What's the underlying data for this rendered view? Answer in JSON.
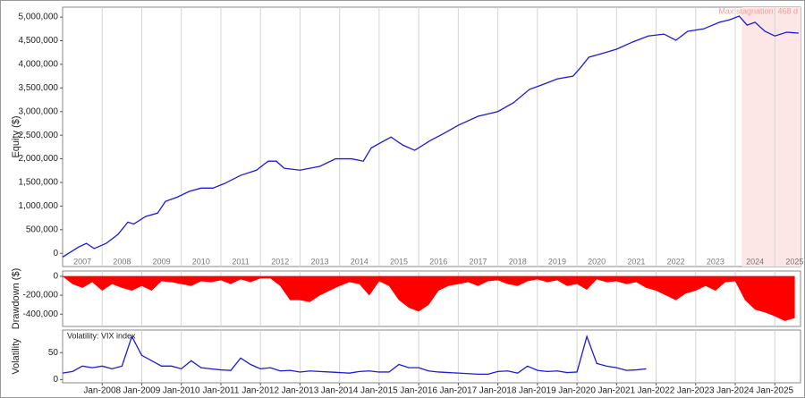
{
  "chart_data": [
    {
      "type": "line",
      "ylabel": "Equity ($)",
      "color": "#1a1adc",
      "xlim": [
        2007,
        2025.65
      ],
      "ylim": [
        -280000,
        5210000
      ],
      "xtick_position": "inside",
      "xticks": [
        {
          "value": 2007.5,
          "label": "2007"
        },
        {
          "value": 2008.5,
          "label": "2008"
        },
        {
          "value": 2009.5,
          "label": "2009"
        },
        {
          "value": 2010.5,
          "label": "2010"
        },
        {
          "value": 2011.5,
          "label": "2011"
        },
        {
          "value": 2012.5,
          "label": "2012"
        },
        {
          "value": 2013.5,
          "label": "2013"
        },
        {
          "value": 2014.5,
          "label": "2014"
        },
        {
          "value": 2015.5,
          "label": "2015"
        },
        {
          "value": 2016.5,
          "label": "2016"
        },
        {
          "value": 2017.5,
          "label": "2017"
        },
        {
          "value": 2018.5,
          "label": "2018"
        },
        {
          "value": 2019.5,
          "label": "2019"
        },
        {
          "value": 2020.5,
          "label": "2020"
        },
        {
          "value": 2021.5,
          "label": "2021"
        },
        {
          "value": 2022.5,
          "label": "2022"
        },
        {
          "value": 2023.5,
          "label": "2023"
        },
        {
          "value": 2024.5,
          "label": "2024"
        },
        {
          "value": 2025.5,
          "label": "2025"
        }
      ],
      "xgrid": [
        2008,
        2009,
        2010,
        2011,
        2012,
        2013,
        2014,
        2015,
        2016,
        2017,
        2018,
        2019,
        2020,
        2021,
        2022,
        2023,
        2024,
        2025
      ],
      "yticks": [
        0,
        {
          "value": 500000,
          "label": "500,000"
        },
        {
          "value": 1000000,
          "label": "1,000,000"
        },
        {
          "value": 1500000,
          "label": "1,500,000"
        },
        {
          "value": 2000000,
          "label": "2,000,000"
        },
        {
          "value": 2500000,
          "label": "2,500,000"
        },
        {
          "value": 3000000,
          "label": "3,000,000"
        },
        {
          "value": 3500000,
          "label": "3,500,000"
        },
        {
          "value": 4000000,
          "label": "4,000,000"
        },
        {
          "value": 4500000,
          "label": "4,500,000"
        },
        {
          "value": 5000000,
          "label": "5,000,000"
        }
      ],
      "annotation": {
        "text": "Max stagnation: 468 d",
        "span": [
          2024.17,
          2025.65
        ],
        "color": "#fde6e6"
      },
      "x": [
        2007,
        2007.4,
        2007.6,
        2007.8,
        2008.1,
        2008.4,
        2008.65,
        2008.8,
        2009.1,
        2009.4,
        2009.6,
        2009.9,
        2010.2,
        2010.5,
        2010.8,
        2011.1,
        2011.5,
        2011.9,
        2012.1,
        2012.2,
        2012.4,
        2012.6,
        2013,
        2013.5,
        2013.9,
        2014.3,
        2014.6,
        2014.8,
        2015.1,
        2015.3,
        2015.6,
        2015.9,
        2016.3,
        2016.6,
        2017,
        2017.5,
        2018,
        2018.4,
        2018.8,
        2019.1,
        2019.5,
        2019.9,
        2020.1,
        2020.3,
        2020.6,
        2021,
        2021.4,
        2021.8,
        2022.2,
        2022.5,
        2022.8,
        2023.2,
        2023.6,
        2023.85,
        2024.1,
        2024.3,
        2024.5,
        2024.75,
        2025,
        2025.3,
        2025.6
      ],
      "values": [
        -80000,
        130000,
        210000,
        100000,
        210000,
        400000,
        660000,
        620000,
        780000,
        850000,
        1100000,
        1190000,
        1310000,
        1380000,
        1380000,
        1480000,
        1650000,
        1760000,
        1890000,
        1950000,
        1950000,
        1800000,
        1760000,
        1840000,
        2000000,
        2000000,
        1950000,
        2230000,
        2370000,
        2460000,
        2290000,
        2180000,
        2390000,
        2520000,
        2710000,
        2900000,
        3000000,
        3190000,
        3470000,
        3560000,
        3690000,
        3750000,
        3940000,
        4150000,
        4220000,
        4320000,
        4470000,
        4600000,
        4640000,
        4510000,
        4700000,
        4750000,
        4890000,
        4940000,
        5020000,
        4830000,
        4890000,
        4700000,
        4600000,
        4680000,
        4660000
      ]
    },
    {
      "type": "area",
      "ylabel": "Drawdown ($)",
      "color": "#ff0000",
      "xlim": [
        2007,
        2025.65
      ],
      "ylim": [
        -530000,
        56000
      ],
      "xgrid": [
        2008,
        2009,
        2010,
        2011,
        2012,
        2013,
        2014,
        2015,
        2016,
        2017,
        2018,
        2019,
        2020,
        2021,
        2022,
        2023,
        2024,
        2025
      ],
      "yticks": [
        0,
        {
          "value": -200000,
          "label": "-200,000"
        },
        {
          "value": -400000,
          "label": "-400,000"
        }
      ],
      "x": [
        2007,
        2007.25,
        2007.5,
        2007.75,
        2008,
        2008.25,
        2008.5,
        2008.75,
        2009,
        2009.25,
        2009.5,
        2009.75,
        2010,
        2010.25,
        2010.5,
        2010.75,
        2011,
        2011.25,
        2011.5,
        2011.75,
        2012,
        2012.25,
        2012.5,
        2012.75,
        2013,
        2013.25,
        2013.5,
        2013.75,
        2014,
        2014.25,
        2014.5,
        2014.75,
        2015,
        2015.25,
        2015.5,
        2015.75,
        2016,
        2016.25,
        2016.5,
        2016.75,
        2017,
        2017.25,
        2017.5,
        2017.75,
        2018,
        2018.25,
        2018.5,
        2018.75,
        2019,
        2019.25,
        2019.5,
        2019.75,
        2020,
        2020.25,
        2020.5,
        2020.75,
        2021,
        2021.25,
        2021.5,
        2021.75,
        2022,
        2022.25,
        2022.5,
        2022.75,
        2023,
        2023.25,
        2023.5,
        2023.75,
        2024,
        2024.25,
        2024.5,
        2024.75,
        2025,
        2025.25,
        2025.5
      ],
      "values": [
        0,
        -80000,
        -120000,
        -60000,
        -150000,
        -80000,
        -120000,
        -150000,
        -100000,
        -150000,
        -50000,
        -60000,
        -80000,
        -100000,
        -50000,
        -60000,
        -40000,
        -80000,
        -30000,
        -60000,
        -20000,
        -20000,
        -100000,
        -250000,
        -250000,
        -270000,
        -200000,
        -150000,
        -100000,
        -60000,
        -80000,
        -200000,
        -50000,
        -100000,
        -250000,
        -330000,
        -370000,
        -300000,
        -150000,
        -100000,
        -80000,
        -60000,
        -100000,
        -50000,
        -40000,
        -80000,
        -100000,
        -50000,
        -30000,
        -60000,
        -40000,
        -100000,
        -80000,
        -140000,
        -30000,
        -60000,
        -50000,
        -80000,
        -60000,
        -120000,
        -150000,
        -200000,
        -250000,
        -180000,
        -150000,
        -100000,
        -150000,
        -60000,
        -50000,
        -250000,
        -350000,
        -380000,
        -420000,
        -470000,
        -440000
      ]
    },
    {
      "type": "line",
      "ylabel": "Volatility",
      "xlim": [
        2007,
        2025.65
      ],
      "ylim": [
        -6,
        92
      ],
      "xtick_position": "outside",
      "grid": true,
      "xticks": [
        {
          "value": 2008,
          "label": "Jan-2008"
        },
        {
          "value": 2009,
          "label": "Jan-2009"
        },
        {
          "value": 2010,
          "label": "Jan-2010"
        },
        {
          "value": 2011,
          "label": "Jan-2011"
        },
        {
          "value": 2012,
          "label": "Jan-2012"
        },
        {
          "value": 2013,
          "label": "Jan-2013"
        },
        {
          "value": 2014,
          "label": "Jan-2014"
        },
        {
          "value": 2015,
          "label": "Jan-2015"
        },
        {
          "value": 2016,
          "label": "Jan-2016"
        },
        {
          "value": 2017,
          "label": "Jan-2017"
        },
        {
          "value": 2018,
          "label": "Jan-2018"
        },
        {
          "value": 2019,
          "label": "Jan-2019"
        },
        {
          "value": 2020,
          "label": "Jan-2020"
        },
        {
          "value": 2021,
          "label": "Jan-2021"
        },
        {
          "value": 2022,
          "label": "Jan-2022"
        },
        {
          "value": 2023,
          "label": "Jan-2023"
        },
        {
          "value": 2024,
          "label": "Jan-2024"
        },
        {
          "value": 2025,
          "label": "Jan-2025"
        }
      ],
      "yticks": [
        0,
        50
      ],
      "x": [
        2007,
        2007.25,
        2007.5,
        2007.75,
        2008,
        2008.25,
        2008.5,
        2008.75,
        2009,
        2009.25,
        2009.5,
        2009.75,
        2010,
        2010.25,
        2010.5,
        2010.75,
        2011,
        2011.25,
        2011.5,
        2011.75,
        2012,
        2012.25,
        2012.5,
        2012.75,
        2013,
        2013.25,
        2013.5,
        2013.75,
        2014,
        2014.25,
        2014.5,
        2014.75,
        2015,
        2015.25,
        2015.5,
        2015.75,
        2016,
        2016.25,
        2016.5,
        2016.75,
        2017,
        2017.25,
        2017.5,
        2017.75,
        2018,
        2018.25,
        2018.5,
        2018.75,
        2019,
        2019.25,
        2019.5,
        2019.75,
        2020,
        2020.25,
        2020.5,
        2020.75,
        2021,
        2021.25,
        2021.5,
        2021.75
      ],
      "series": [
        {
          "name": "Volatility: VIX index",
          "color": "#1a1adc",
          "values": [
            12,
            15,
            25,
            22,
            25,
            20,
            25,
            80,
            45,
            35,
            25,
            25,
            20,
            35,
            22,
            20,
            18,
            17,
            40,
            28,
            20,
            22,
            16,
            17,
            14,
            16,
            15,
            14,
            13,
            12,
            15,
            16,
            14,
            14,
            28,
            22,
            22,
            16,
            14,
            13,
            12,
            11,
            10,
            10,
            15,
            16,
            12,
            25,
            17,
            15,
            16,
            13,
            14,
            80,
            30,
            25,
            22,
            17,
            18,
            20
          ]
        }
      ]
    }
  ]
}
